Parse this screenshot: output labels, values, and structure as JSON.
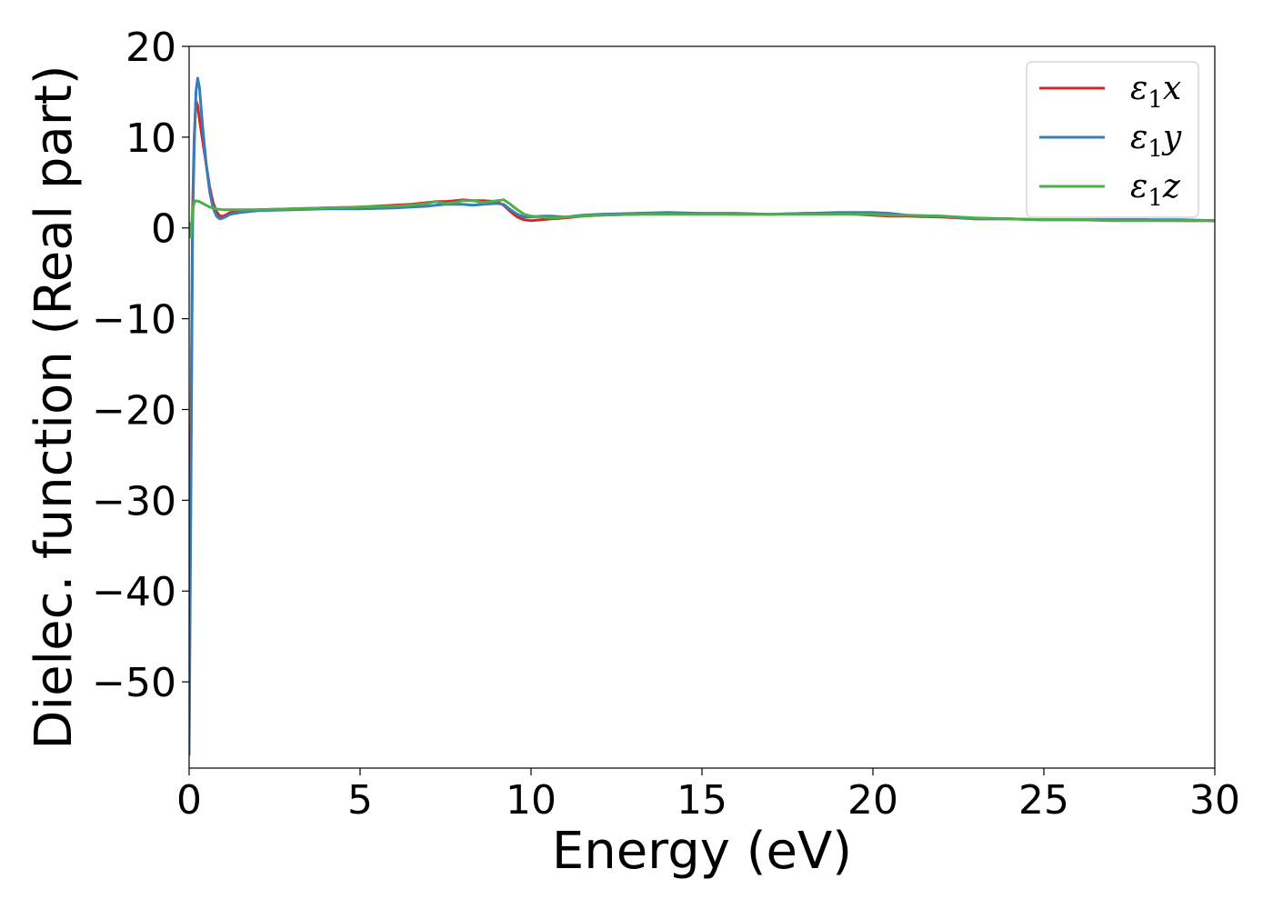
{
  "chart_data": {
    "type": "line",
    "xlabel": "Energy (eV)",
    "ylabel": "Dielec. function (Real part)",
    "xlim": [
      0,
      30
    ],
    "ylim": [
      -59.5,
      20.0
    ],
    "xticks": [
      0,
      5,
      10,
      15,
      20,
      25,
      30
    ],
    "yticks": [
      -50,
      -40,
      -30,
      -20,
      -10,
      0,
      10,
      20
    ],
    "ytick_labels": [
      "−50",
      "−40",
      "−30",
      "−20",
      "−10",
      "0",
      "10",
      "20"
    ],
    "grid": false,
    "legend_position": "top-right",
    "series": [
      {
        "name": "ε1x",
        "legend_base": "ε",
        "legend_sub": "1",
        "legend_var": "x",
        "color": "#d62728",
        "x": [
          0.0,
          0.05,
          0.1,
          0.15,
          0.2,
          0.25,
          0.3,
          0.4,
          0.5,
          0.6,
          0.7,
          0.8,
          0.9,
          1.0,
          1.1,
          1.2,
          1.5,
          2.0,
          3.0,
          4.0,
          5.0,
          6.0,
          6.5,
          7.0,
          7.2,
          7.5,
          7.8,
          8.0,
          8.3,
          8.6,
          9.0,
          9.2,
          9.4,
          9.6,
          9.8,
          10.0,
          10.3,
          10.6,
          11.0,
          11.5,
          12.0,
          13.0,
          14.0,
          15.0,
          16.0,
          17.0,
          18.0,
          19.0,
          19.5,
          20.0,
          20.5,
          21.0,
          22.0,
          23.0,
          24.0,
          25.0,
          26.0,
          27.0,
          28.0,
          29.0,
          30.0
        ],
        "y": [
          -55.0,
          -25.0,
          2.0,
          10.0,
          14.0,
          13.5,
          12.0,
          9.5,
          7.0,
          4.5,
          2.8,
          1.8,
          1.3,
          1.3,
          1.5,
          1.7,
          1.9,
          2.0,
          2.1,
          2.2,
          2.3,
          2.5,
          2.6,
          2.8,
          2.9,
          2.9,
          3.0,
          3.1,
          3.0,
          3.0,
          2.9,
          2.5,
          1.8,
          1.2,
          0.9,
          0.8,
          0.9,
          1.0,
          1.1,
          1.3,
          1.4,
          1.5,
          1.6,
          1.6,
          1.6,
          1.5,
          1.6,
          1.6,
          1.5,
          1.4,
          1.3,
          1.3,
          1.2,
          1.0,
          1.0,
          0.9,
          0.9,
          0.9,
          0.9,
          0.8,
          0.8
        ]
      },
      {
        "name": "ε1y",
        "legend_base": "ε",
        "legend_sub": "1",
        "legend_var": "y",
        "color": "#377eb8",
        "x": [
          0.0,
          0.05,
          0.1,
          0.15,
          0.2,
          0.25,
          0.3,
          0.4,
          0.5,
          0.6,
          0.7,
          0.8,
          0.9,
          1.0,
          1.1,
          1.2,
          1.5,
          2.0,
          3.0,
          4.0,
          5.0,
          6.0,
          7.0,
          7.2,
          7.5,
          7.8,
          8.0,
          8.3,
          8.6,
          9.0,
          9.2,
          9.4,
          9.6,
          9.8,
          10.0,
          10.3,
          10.6,
          11.0,
          11.5,
          12.0,
          13.0,
          14.0,
          15.0,
          16.0,
          17.0,
          18.0,
          19.0,
          19.5,
          20.0,
          20.5,
          21.0,
          22.0,
          23.0,
          24.0,
          25.0,
          26.0,
          27.0,
          28.0,
          29.0,
          30.0
        ],
        "y": [
          -58.0,
          -30.0,
          0.0,
          9.0,
          15.0,
          16.5,
          15.5,
          11.0,
          7.0,
          4.0,
          2.2,
          1.3,
          1.0,
          1.1,
          1.3,
          1.5,
          1.7,
          1.9,
          2.0,
          2.1,
          2.1,
          2.2,
          2.4,
          2.5,
          2.6,
          2.6,
          2.6,
          2.5,
          2.6,
          2.7,
          2.6,
          2.0,
          1.5,
          1.2,
          1.2,
          1.3,
          1.3,
          1.2,
          1.4,
          1.5,
          1.6,
          1.7,
          1.6,
          1.5,
          1.5,
          1.6,
          1.7,
          1.7,
          1.7,
          1.6,
          1.4,
          1.3,
          1.0,
          1.0,
          0.9,
          0.9,
          0.9,
          0.9,
          0.9,
          0.8
        ]
      },
      {
        "name": "ε1z",
        "legend_base": "ε",
        "legend_sub": "1",
        "legend_var": "z",
        "color": "#4daf4a",
        "x": [
          0.0,
          0.05,
          0.1,
          0.15,
          0.2,
          0.3,
          0.4,
          0.5,
          0.6,
          0.8,
          1.0,
          1.5,
          2.0,
          3.0,
          4.0,
          5.0,
          6.0,
          6.5,
          7.0,
          7.2,
          7.5,
          7.8,
          8.0,
          8.3,
          8.6,
          9.0,
          9.2,
          9.4,
          9.6,
          9.8,
          10.0,
          10.3,
          10.6,
          11.0,
          11.5,
          12.0,
          13.0,
          14.0,
          15.0,
          16.0,
          17.0,
          18.0,
          19.0,
          19.5,
          20.0,
          20.5,
          21.0,
          22.0,
          23.0,
          24.0,
          25.0,
          26.0,
          27.0,
          28.0,
          29.0,
          30.0
        ],
        "y": [
          0.5,
          -1.0,
          2.0,
          2.8,
          3.0,
          2.9,
          2.7,
          2.5,
          2.3,
          2.1,
          2.0,
          2.0,
          2.0,
          2.1,
          2.2,
          2.3,
          2.4,
          2.5,
          2.7,
          2.9,
          2.7,
          2.8,
          3.0,
          3.0,
          2.8,
          3.0,
          3.1,
          2.6,
          2.0,
          1.5,
          1.3,
          1.2,
          1.1,
          1.2,
          1.3,
          1.4,
          1.5,
          1.5,
          1.5,
          1.5,
          1.5,
          1.5,
          1.5,
          1.5,
          1.5,
          1.4,
          1.4,
          1.3,
          1.1,
          1.0,
          0.9,
          0.9,
          0.8,
          0.8,
          0.8,
          0.8
        ]
      }
    ]
  }
}
